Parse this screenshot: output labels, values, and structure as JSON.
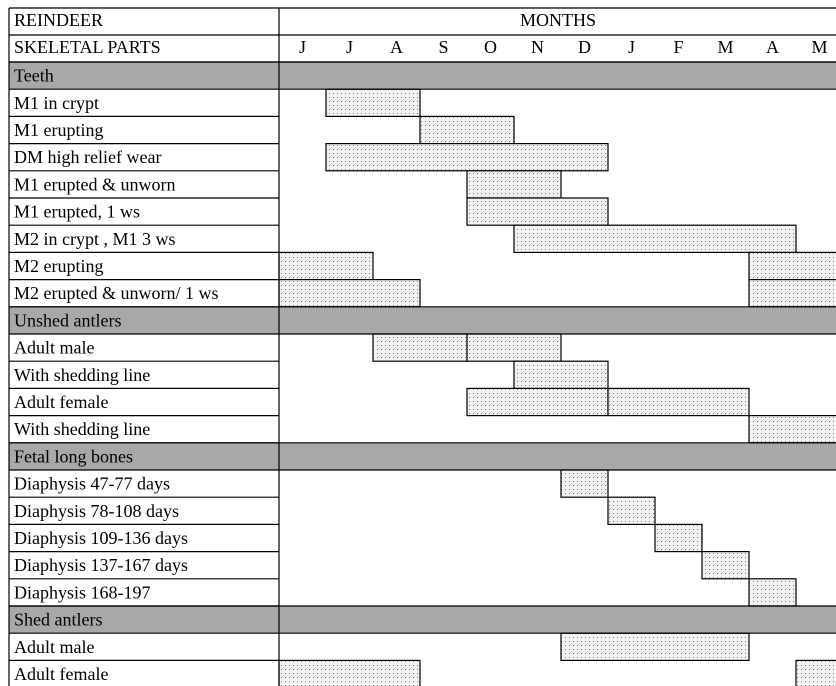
{
  "header": {
    "row1_left": "REINDEER",
    "row1_right": "MONTHS",
    "row2_left": "SKELETAL PARTS",
    "months": [
      "J",
      "J",
      "A",
      "S",
      "O",
      "N",
      "D",
      "J",
      "F",
      "M",
      "A",
      "M"
    ]
  },
  "colors": {
    "section_fill": "#a8a8a8",
    "bar_fill": "#f2f2f2",
    "bar_dot": "#7a7a7a",
    "line": "#000000"
  },
  "rows": [
    {
      "type": "section",
      "label": "Teeth"
    },
    {
      "type": "item",
      "label": "M1 in crypt",
      "bars": [
        [
          1,
          3
        ]
      ]
    },
    {
      "type": "item",
      "label": "M1 erupting",
      "bars": [
        [
          3,
          5
        ]
      ]
    },
    {
      "type": "item",
      "label": "DM high relief wear",
      "bars": [
        [
          1,
          7
        ]
      ]
    },
    {
      "type": "item",
      "label": "M1 erupted & unworn",
      "bars": [
        [
          4,
          6
        ]
      ]
    },
    {
      "type": "item",
      "label": "M1 erupted,  1 ws",
      "bars": [
        [
          4,
          7
        ]
      ]
    },
    {
      "type": "item",
      "label": "M2 in crypt , M1 3 ws",
      "bars": [
        [
          5,
          11
        ]
      ]
    },
    {
      "type": "item",
      "label": "M2 erupting",
      "bars": [
        [
          0,
          2
        ],
        [
          10,
          12
        ]
      ]
    },
    {
      "type": "item",
      "label": "M2 erupted & unworn/ 1 ws",
      "bars": [
        [
          0,
          3
        ],
        [
          10,
          12
        ]
      ]
    },
    {
      "type": "section",
      "label": "Unshed antlers"
    },
    {
      "type": "item",
      "label": "Adult male",
      "bars": [
        [
          2,
          4
        ],
        [
          4,
          6
        ]
      ]
    },
    {
      "type": "item",
      "label": "With shedding line",
      "bars": [
        [
          5,
          7
        ]
      ]
    },
    {
      "type": "item",
      "label": "Adult female",
      "bars": [
        [
          4,
          7
        ],
        [
          7,
          10
        ]
      ]
    },
    {
      "type": "item",
      "label": "With shedding line",
      "bars": [
        [
          10,
          12
        ]
      ]
    },
    {
      "type": "section",
      "label": "Fetal long bones"
    },
    {
      "type": "item",
      "label": "Diaphysis 47-77 days",
      "bars": [
        [
          6,
          7
        ]
      ]
    },
    {
      "type": "item",
      "label": "Diaphysis 78-108 days",
      "bars": [
        [
          7,
          8
        ]
      ]
    },
    {
      "type": "item",
      "label": "Diaphysis 109-136 days",
      "bars": [
        [
          8,
          9
        ]
      ]
    },
    {
      "type": "item",
      "label": "Diaphysis 137-167 days",
      "bars": [
        [
          9,
          10
        ]
      ]
    },
    {
      "type": "item",
      "label": "Diaphysis 168-197",
      "bars": [
        [
          10,
          11
        ]
      ]
    },
    {
      "type": "section",
      "label": "Shed antlers"
    },
    {
      "type": "item",
      "label": "Adult male",
      "bars": [
        [
          6,
          10
        ]
      ]
    },
    {
      "type": "item",
      "label": "Adult female",
      "bars": [
        [
          0,
          3
        ],
        [
          11,
          12
        ]
      ]
    }
  ]
}
